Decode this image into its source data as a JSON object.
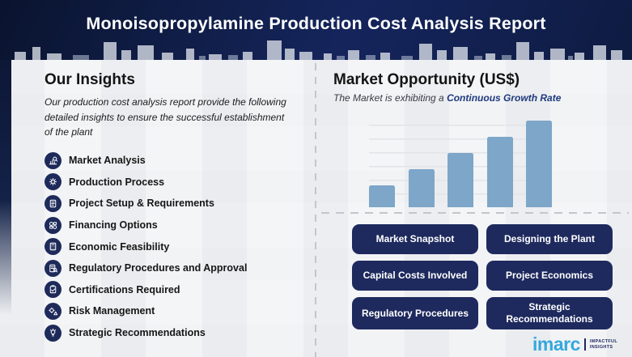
{
  "banner": {
    "title": "Monoisopropylamine Production Cost Analysis Report"
  },
  "insights": {
    "heading": "Our Insights",
    "description": "Our production cost analysis report provide the following detailed insights to ensure the successful establishment of the plant",
    "items": [
      {
        "label": "Market Analysis",
        "icon": "market-analysis-icon"
      },
      {
        "label": "Production Process",
        "icon": "production-process-icon"
      },
      {
        "label": "Project Setup & Requirements",
        "icon": "project-setup-icon"
      },
      {
        "label": "Financing Options",
        "icon": "financing-options-icon"
      },
      {
        "label": "Economic Feasibility",
        "icon": "economic-feasibility-icon"
      },
      {
        "label": "Regulatory Procedures and Approval",
        "icon": "regulatory-approval-icon"
      },
      {
        "label": "Certifications Required",
        "icon": "certifications-icon"
      },
      {
        "label": "Risk Management",
        "icon": "risk-management-icon"
      },
      {
        "label": "Strategic Recommendations",
        "icon": "strategic-recommendations-icon"
      }
    ]
  },
  "market": {
    "heading": "Market Opportunity (US$)",
    "subtitle_prefix": "The Market is exhibiting a ",
    "subtitle_accent": "Continuous Growth Rate"
  },
  "chart_data": {
    "type": "bar",
    "categories": [
      "",
      "",
      "",
      "",
      ""
    ],
    "values": [
      25,
      44,
      63,
      82,
      100
    ],
    "title": "Market Opportunity (US$)",
    "subtitle": "The Market is exhibiting a Continuous Growth Rate",
    "xlabel": "",
    "ylabel": "",
    "ylim": [
      0,
      105
    ],
    "grid": true,
    "legend": false,
    "bar_color": "#7da6c9"
  },
  "buttons": [
    {
      "label": "Market Snapshot"
    },
    {
      "label": "Designing the Plant"
    },
    {
      "label": "Capital Costs Involved"
    },
    {
      "label": "Project Economics"
    },
    {
      "label": "Regulatory Procedures"
    },
    {
      "label": "Strategic Recommendations"
    }
  ],
  "logo": {
    "name": "imarc",
    "tagline_line1": "IMPACTFUL",
    "tagline_line2": "INSIGHTS"
  },
  "colors": {
    "banner_navy": "#14245c",
    "button_navy": "#1e2a5e",
    "icon_navy": "#1e2a5a",
    "bar_blue": "#7da6c9",
    "accent_text": "#1f3a7e",
    "logo_blue": "#35a7de"
  }
}
